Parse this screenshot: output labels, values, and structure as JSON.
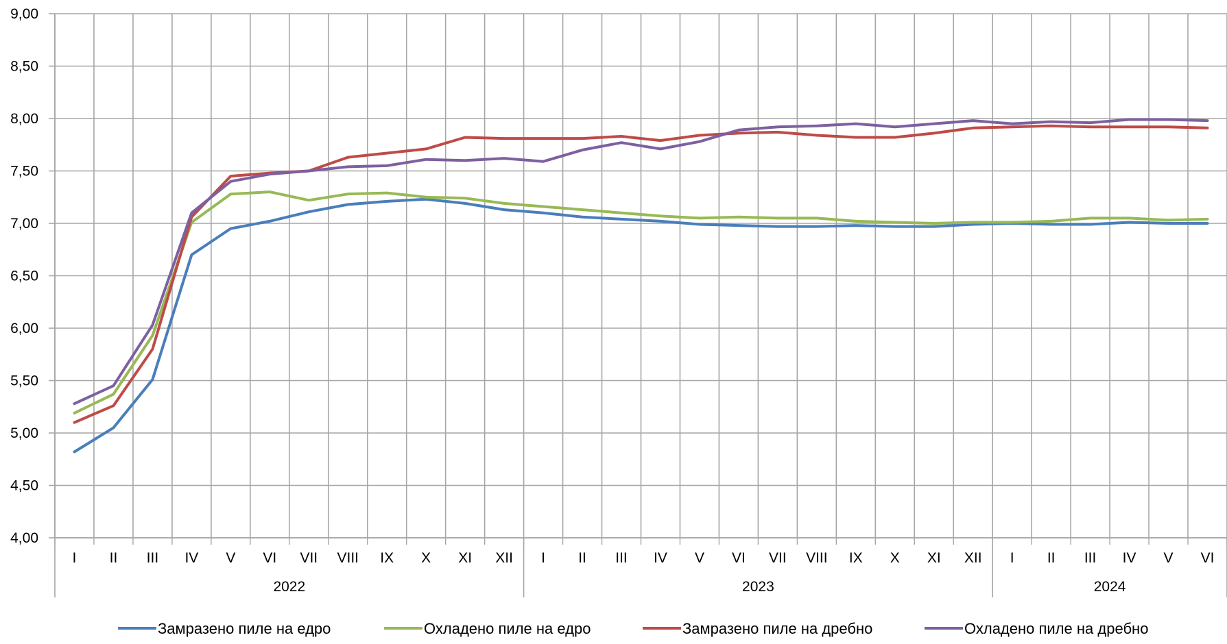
{
  "chart_data": {
    "type": "line",
    "title": "",
    "xlabel": "",
    "ylabel": "",
    "ylim": [
      4.0,
      9.0
    ],
    "y_ticks": [
      "4,00",
      "4,50",
      "5,00",
      "5,50",
      "6,00",
      "6,50",
      "7,00",
      "7,50",
      "8,00",
      "8,50",
      "9,00"
    ],
    "grid": true,
    "legend_position": "bottom",
    "categories": [
      "I",
      "II",
      "III",
      "IV",
      "V",
      "VI",
      "VII",
      "VIII",
      "IX",
      "X",
      "XI",
      "XII",
      "I",
      "II",
      "III",
      "IV",
      "V",
      "VI",
      "VII",
      "VIII",
      "IX",
      "X",
      "XI",
      "XII",
      "I",
      "II",
      "III",
      "IV",
      "V",
      "VI"
    ],
    "years": [
      {
        "label": "2022",
        "months": 12
      },
      {
        "label": "2023",
        "months": 12
      },
      {
        "label": "2024",
        "months": 6
      }
    ],
    "series": [
      {
        "name": "Замразено пиле на едро",
        "color": "#4a7ebb",
        "values": [
          4.82,
          5.05,
          5.51,
          6.7,
          6.95,
          7.02,
          7.11,
          7.18,
          7.21,
          7.23,
          7.19,
          7.13,
          7.1,
          7.06,
          7.04,
          7.02,
          6.99,
          6.98,
          6.97,
          6.97,
          6.98,
          6.97,
          6.97,
          6.99,
          7.0,
          6.99,
          6.99,
          7.01,
          7.0,
          7.0
        ]
      },
      {
        "name": "Охладено пиле на едро",
        "color": "#98b954",
        "values": [
          5.19,
          5.37,
          5.93,
          7.01,
          7.28,
          7.3,
          7.22,
          7.28,
          7.29,
          7.25,
          7.24,
          7.19,
          7.16,
          7.13,
          7.1,
          7.07,
          7.05,
          7.06,
          7.05,
          7.05,
          7.02,
          7.01,
          7.0,
          7.01,
          7.01,
          7.02,
          7.05,
          7.05,
          7.03,
          7.04
        ]
      },
      {
        "name": "Замразено пиле на дребно",
        "color": "#be4b48",
        "values": [
          5.1,
          5.26,
          5.8,
          7.06,
          7.45,
          7.48,
          7.5,
          7.63,
          7.67,
          7.71,
          7.82,
          7.81,
          7.81,
          7.81,
          7.83,
          7.79,
          7.84,
          7.86,
          7.87,
          7.84,
          7.82,
          7.82,
          7.86,
          7.91,
          7.92,
          7.93,
          7.92,
          7.92,
          7.92,
          7.91
        ]
      },
      {
        "name": "Охладено пиле на дребно",
        "color": "#7d60a0",
        "values": [
          5.28,
          5.45,
          6.03,
          7.1,
          7.4,
          7.47,
          7.5,
          7.54,
          7.55,
          7.61,
          7.6,
          7.62,
          7.59,
          7.7,
          7.77,
          7.71,
          7.78,
          7.89,
          7.92,
          7.93,
          7.95,
          7.92,
          7.95,
          7.98,
          7.95,
          7.97,
          7.96,
          7.99,
          7.99,
          7.98
        ]
      }
    ]
  }
}
